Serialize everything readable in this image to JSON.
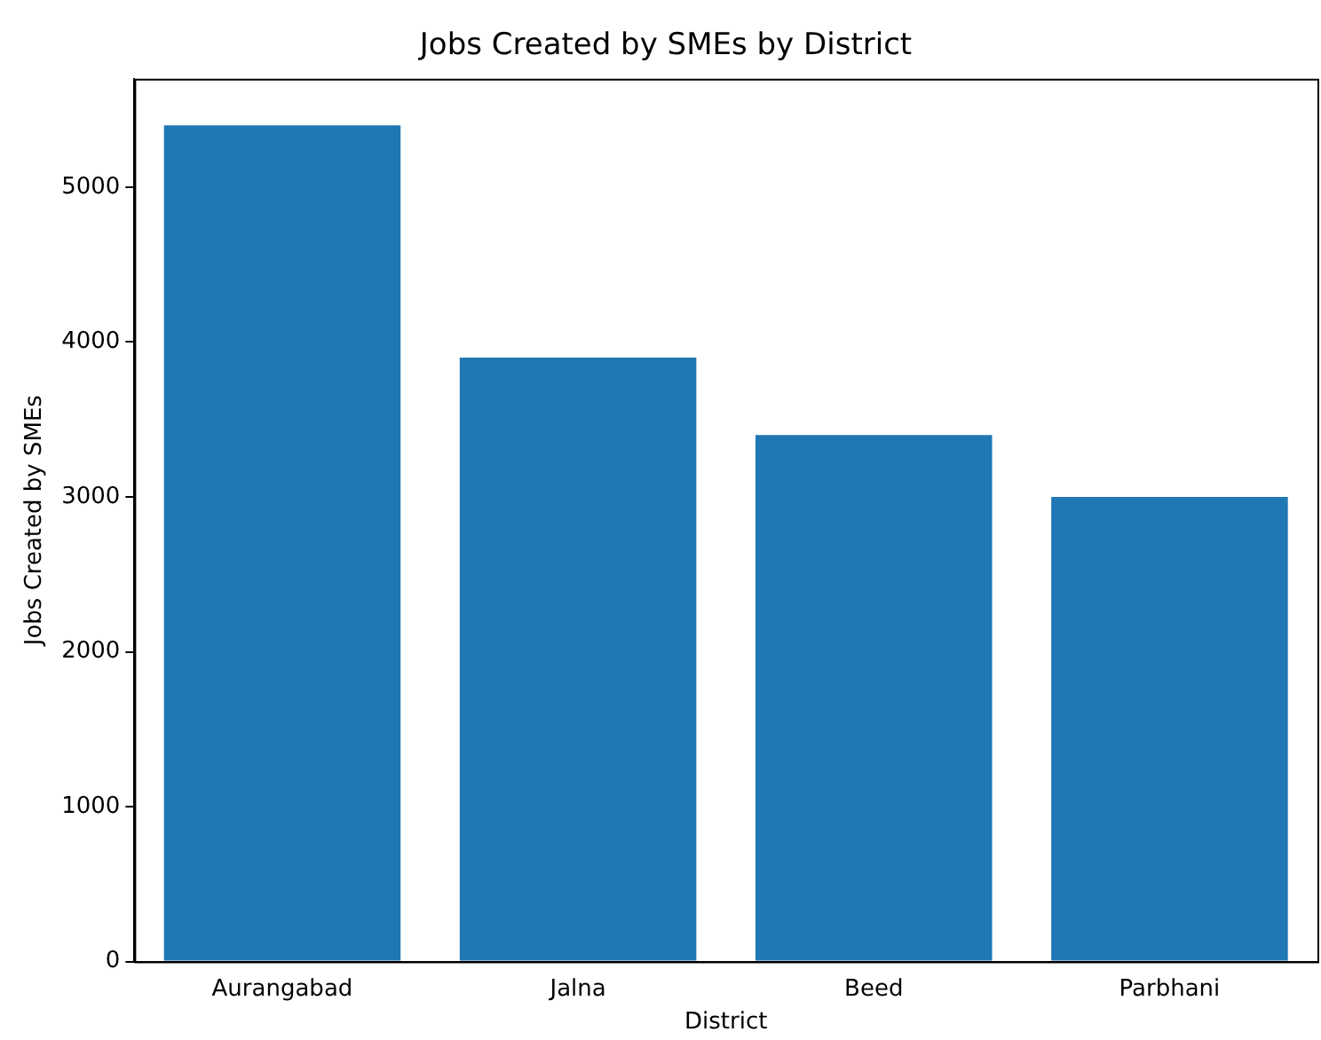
{
  "chart_data": {
    "type": "bar",
    "title": "Jobs Created by SMEs by District",
    "xlabel": "District",
    "ylabel": "Jobs Created by SMEs",
    "categories": [
      "Aurangabad",
      "Jalna",
      "Beed",
      "Parbhani"
    ],
    "values": [
      5400,
      3900,
      3400,
      3000
    ],
    "color": "#1f77b4",
    "ylim": [
      0,
      5700
    ],
    "yticks": [
      0,
      1000,
      2000,
      3000,
      4000,
      5000
    ],
    "grid": false,
    "legend": false
  }
}
